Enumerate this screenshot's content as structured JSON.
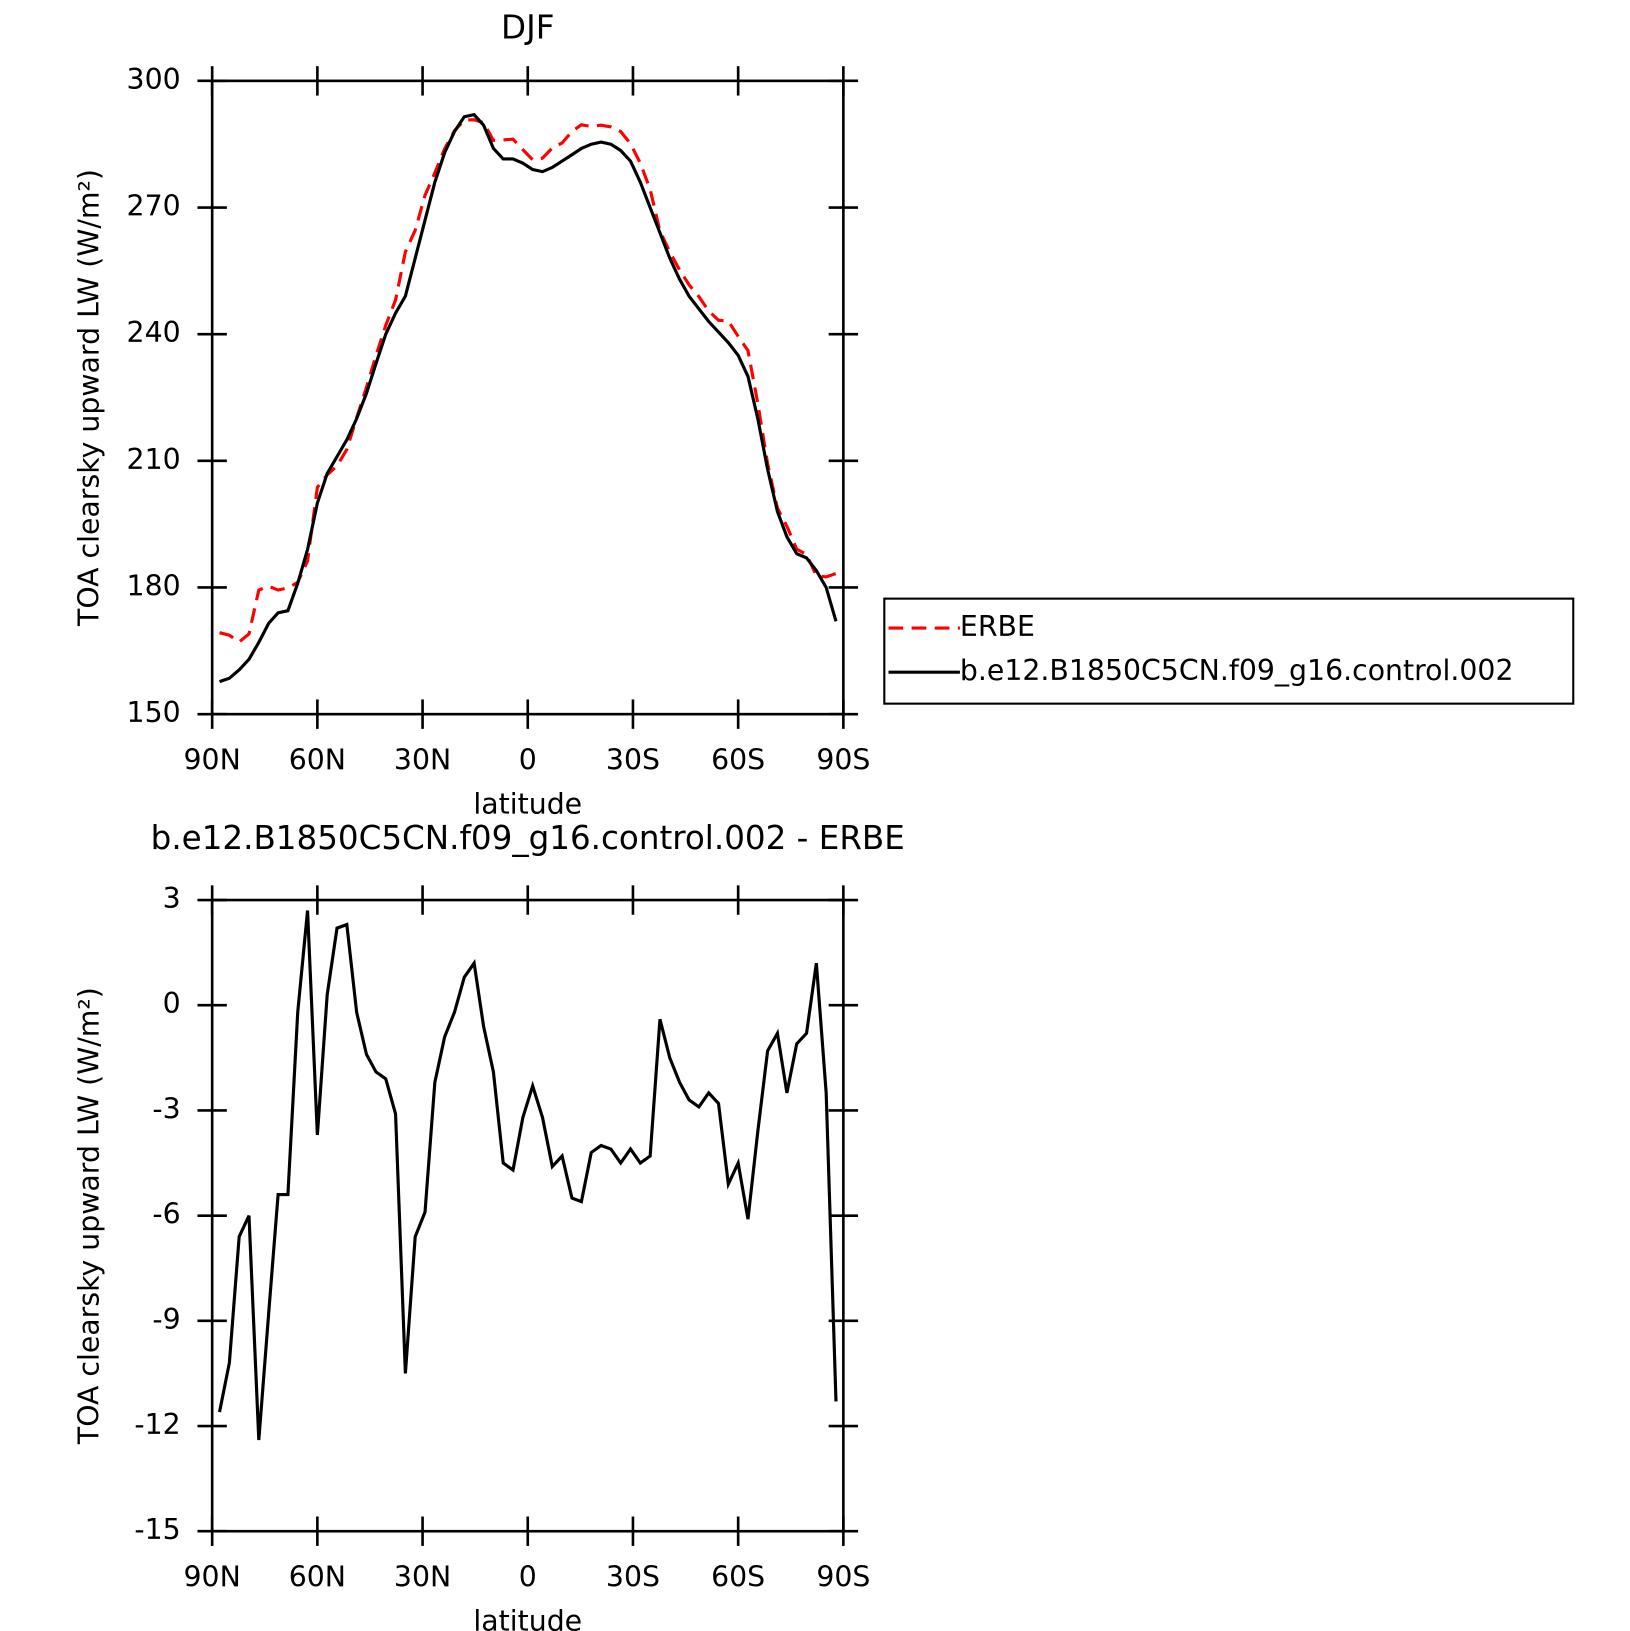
{
  "chart_data": [
    {
      "type": "line",
      "title": "DJF",
      "xlabel": "latitude",
      "ylabel": "TOA clearsky upward LW (W/m²)",
      "x": [
        87.9,
        85.1,
        82.3,
        79.5,
        76.7,
        73.9,
        71.2,
        68.4,
        65.6,
        62.8,
        60.0,
        57.2,
        54.4,
        51.6,
        48.8,
        46.0,
        43.3,
        40.5,
        37.7,
        34.9,
        32.1,
        29.3,
        26.5,
        23.7,
        20.9,
        18.1,
        15.3,
        12.6,
        9.8,
        7.0,
        4.2,
        1.4,
        -1.4,
        -4.2,
        -7.0,
        -9.8,
        -12.6,
        -15.3,
        -18.1,
        -20.9,
        -23.7,
        -26.5,
        -29.3,
        -32.1,
        -34.9,
        -37.7,
        -40.5,
        -43.3,
        -46.0,
        -48.8,
        -51.6,
        -54.4,
        -57.2,
        -60.0,
        -62.8,
        -65.6,
        -68.4,
        -71.2,
        -73.9,
        -76.7,
        -79.5,
        -82.3,
        -85.1,
        -87.9
      ],
      "series": [
        {
          "name": "ERBE",
          "color": "#ff0000",
          "style": "dashed",
          "values": [
            169.3,
            168.7,
            167.1,
            169,
            179.4,
            180.3,
            179.4,
            179.9,
            181.2,
            186.3,
            203.7,
            206.7,
            208.8,
            212.7,
            220.2,
            227.4,
            234.9,
            242.1,
            248.1,
            259.5,
            264.6,
            272.9,
            278.2,
            283.9,
            288.2,
            290.7,
            290.8,
            290.1,
            285.9,
            286,
            286.2,
            283.7,
            281.3,
            281.7,
            284.1,
            285.3,
            288,
            289.6,
            289.2,
            289.5,
            289.1,
            288,
            285.1,
            280.5,
            274.3,
            264.4,
            259.5,
            255.2,
            251.7,
            248.9,
            245.5,
            243.3,
            243.1,
            239.5,
            236.1,
            223.6,
            209.3,
            198.8,
            194.5,
            189.1,
            187.8,
            182.8,
            182.5,
            183.3
          ]
        },
        {
          "name": "b.e12.B1850C5CN.f09_g16.control.002",
          "color": "#000000",
          "style": "solid",
          "values": [
            157.7,
            158.5,
            160.5,
            163,
            167,
            171.5,
            174,
            174.5,
            181,
            189,
            200,
            207,
            211,
            215,
            220,
            226,
            233,
            240,
            245,
            249,
            258,
            267,
            276,
            283,
            288,
            291.5,
            292,
            289.5,
            284,
            281.5,
            281.5,
            280.5,
            279,
            278.5,
            279.5,
            281,
            282.5,
            284,
            285,
            285.5,
            285,
            283.5,
            281,
            276,
            270,
            264,
            258,
            253,
            249,
            246,
            243,
            240.5,
            238,
            235,
            230,
            220,
            208,
            198,
            192,
            188,
            187,
            184,
            180,
            172
          ]
        }
      ],
      "xlim": [
        90,
        -90
      ],
      "xticks": [
        {
          "value": 90,
          "label": "90N"
        },
        {
          "value": 60,
          "label": "60N"
        },
        {
          "value": 30,
          "label": "30N"
        },
        0,
        {
          "value": -30,
          "label": "30S"
        },
        {
          "value": -60,
          "label": "60S"
        },
        {
          "value": -90,
          "label": "90S"
        }
      ],
      "ylim": [
        150,
        300
      ],
      "yticks": [
        150,
        180,
        210,
        240,
        270,
        300
      ],
      "legend": "right",
      "grid": false
    },
    {
      "type": "line",
      "title": "b.e12.B1850C5CN.f09_g16.control.002 - ERBE",
      "xlabel": "latitude",
      "ylabel": "TOA clearsky upward LW (W/m²)",
      "x": [
        87.9,
        85.1,
        82.3,
        79.5,
        76.7,
        73.9,
        71.2,
        68.4,
        65.6,
        62.8,
        60.0,
        57.2,
        54.4,
        51.6,
        48.8,
        46.0,
        43.3,
        40.5,
        37.7,
        34.9,
        32.1,
        29.3,
        26.5,
        23.7,
        20.9,
        18.1,
        15.3,
        12.6,
        9.8,
        7.0,
        4.2,
        1.4,
        -1.4,
        -4.2,
        -7.0,
        -9.8,
        -12.6,
        -15.3,
        -18.1,
        -20.9,
        -23.7,
        -26.5,
        -29.3,
        -32.1,
        -34.9,
        -37.7,
        -40.5,
        -43.3,
        -46.0,
        -48.8,
        -51.6,
        -54.4,
        -57.2,
        -60.0,
        -62.8,
        -65.6,
        -68.4,
        -71.2,
        -73.9,
        -76.7,
        -79.5,
        -82.3,
        -85.1,
        -87.9
      ],
      "series": [
        {
          "color": "#000000",
          "style": "solid",
          "values": [
            -11.6,
            -10.2,
            -6.6,
            -6.0,
            -12.4,
            -8.8,
            -5.4,
            -5.4,
            -0.2,
            2.7,
            -3.7,
            0.3,
            2.2,
            2.3,
            -0.2,
            -1.4,
            -1.9,
            -2.1,
            -3.1,
            -10.5,
            -6.6,
            -5.9,
            -2.2,
            -0.9,
            -0.2,
            0.8,
            1.2,
            -0.6,
            -1.9,
            -4.5,
            -4.7,
            -3.2,
            -2.3,
            -3.2,
            -4.6,
            -4.3,
            -5.5,
            -5.6,
            -4.2,
            -4.0,
            -4.1,
            -4.5,
            -4.1,
            -4.5,
            -4.3,
            -0.4,
            -1.5,
            -2.2,
            -2.7,
            -2.9,
            -2.5,
            -2.8,
            -5.1,
            -4.5,
            -6.1,
            -3.6,
            -1.3,
            -0.8,
            -2.5,
            -1.1,
            -0.8,
            1.2,
            -2.5,
            -11.3
          ]
        }
      ],
      "xlim": [
        90,
        -90
      ],
      "xticks": [
        {
          "value": 90,
          "label": "90N"
        },
        {
          "value": 60,
          "label": "60N"
        },
        {
          "value": 30,
          "label": "30N"
        },
        0,
        {
          "value": -30,
          "label": "30S"
        },
        {
          "value": -60,
          "label": "60S"
        },
        {
          "value": -90,
          "label": "90S"
        }
      ],
      "ylim": [
        -15,
        3
      ],
      "yticks": [
        -15,
        -12,
        -9,
        -6,
        -3,
        0,
        3
      ],
      "grid": false
    }
  ]
}
